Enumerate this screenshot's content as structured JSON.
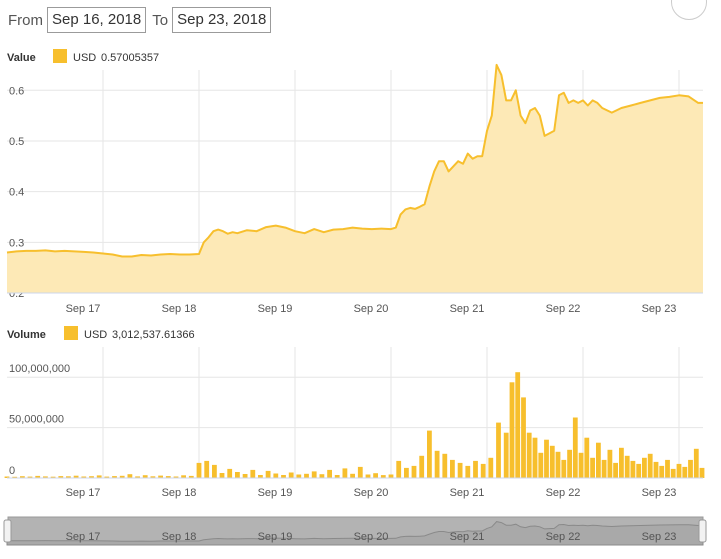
{
  "range": {
    "from_label": "From",
    "from_value": "Sep 16, 2018",
    "to_label": "To",
    "to_value": "Sep 23, 2018"
  },
  "colors": {
    "accent": "#f7bf2d",
    "area": "#fde9b6",
    "grid": "#e6e6e6",
    "navigator": "#b3b3b3"
  },
  "chart_data": [
    {
      "type": "area",
      "panel": "value",
      "legend": {
        "name": "Value",
        "series_label": "USD",
        "current": "0.57005357"
      },
      "x_ticks": [
        "Sep 17",
        "Sep 18",
        "Sep 19",
        "Sep 20",
        "Sep 21",
        "Sep 22",
        "Sep 23"
      ],
      "y_ticks": [
        "0.2",
        "0.3",
        "0.4",
        "0.5",
        "0.6"
      ],
      "ylim": [
        0.2,
        0.64
      ],
      "x": [
        16.0,
        16.1,
        16.2,
        16.3,
        16.4,
        16.5,
        16.6,
        16.7,
        16.8,
        16.9,
        17.0,
        17.1,
        17.2,
        17.3,
        17.4,
        17.5,
        17.6,
        17.7,
        17.8,
        17.9,
        18.0,
        18.05,
        18.1,
        18.15,
        18.2,
        18.25,
        18.3,
        18.35,
        18.4,
        18.5,
        18.6,
        18.7,
        18.8,
        18.9,
        19.0,
        19.1,
        19.2,
        19.3,
        19.4,
        19.5,
        19.6,
        19.7,
        19.8,
        19.9,
        20.0,
        20.05,
        20.1,
        20.15,
        20.2,
        20.25,
        20.3,
        20.35,
        20.4,
        20.45,
        20.5,
        20.55,
        20.6,
        20.65,
        20.7,
        20.75,
        20.8,
        20.85,
        20.9,
        20.95,
        21.0,
        21.05,
        21.1,
        21.15,
        21.2,
        21.25,
        21.3,
        21.35,
        21.4,
        21.45,
        21.5,
        21.55,
        21.6,
        21.65,
        21.7,
        21.75,
        21.8,
        21.85,
        21.9,
        21.95,
        22.0,
        22.05,
        22.1,
        22.15,
        22.2,
        22.3,
        22.4,
        22.5,
        22.6,
        22.7,
        22.8,
        22.9,
        23.0,
        23.1,
        23.2,
        23.25
      ],
      "values": [
        0.28,
        0.282,
        0.283,
        0.283,
        0.284,
        0.282,
        0.283,
        0.282,
        0.281,
        0.28,
        0.278,
        0.276,
        0.272,
        0.272,
        0.275,
        0.274,
        0.276,
        0.277,
        0.276,
        0.276,
        0.277,
        0.3,
        0.31,
        0.322,
        0.325,
        0.322,
        0.317,
        0.32,
        0.318,
        0.324,
        0.322,
        0.33,
        0.333,
        0.329,
        0.322,
        0.318,
        0.326,
        0.32,
        0.325,
        0.326,
        0.329,
        0.327,
        0.326,
        0.327,
        0.326,
        0.329,
        0.355,
        0.365,
        0.368,
        0.366,
        0.37,
        0.375,
        0.41,
        0.44,
        0.46,
        0.46,
        0.44,
        0.45,
        0.46,
        0.455,
        0.475,
        0.465,
        0.47,
        0.47,
        0.52,
        0.55,
        0.65,
        0.63,
        0.58,
        0.58,
        0.6,
        0.55,
        0.535,
        0.56,
        0.565,
        0.55,
        0.51,
        0.515,
        0.52,
        0.59,
        0.595,
        0.575,
        0.58,
        0.575,
        0.58,
        0.57,
        0.58,
        0.575,
        0.565,
        0.556,
        0.565,
        0.57,
        0.575,
        0.58,
        0.585,
        0.587,
        0.59,
        0.588,
        0.575,
        0.575
      ]
    },
    {
      "type": "bar",
      "panel": "volume",
      "legend": {
        "name": "Volume",
        "series_label": "USD",
        "current": "3,012,537.61366"
      },
      "x_ticks": [
        "Sep 17",
        "Sep 18",
        "Sep 19",
        "Sep 20",
        "Sep 21",
        "Sep 22",
        "Sep 23"
      ],
      "y_ticks": [
        "0",
        "50,000,000",
        "100,000,000"
      ],
      "ylim": [
        0,
        130000000
      ],
      "x": [
        16.0,
        16.08,
        16.16,
        16.24,
        16.32,
        16.4,
        16.48,
        16.56,
        16.64,
        16.72,
        16.8,
        16.88,
        16.96,
        17.04,
        17.12,
        17.2,
        17.28,
        17.36,
        17.44,
        17.52,
        17.6,
        17.68,
        17.76,
        17.84,
        17.92,
        18.0,
        18.08,
        18.16,
        18.24,
        18.32,
        18.4,
        18.48,
        18.56,
        18.64,
        18.72,
        18.8,
        18.88,
        18.96,
        19.04,
        19.12,
        19.2,
        19.28,
        19.36,
        19.44,
        19.52,
        19.6,
        19.68,
        19.76,
        19.84,
        19.92,
        20.0,
        20.08,
        20.16,
        20.24,
        20.32,
        20.4,
        20.48,
        20.56,
        20.64,
        20.72,
        20.8,
        20.88,
        20.96,
        21.04,
        21.12,
        21.2,
        21.26,
        21.32,
        21.38,
        21.44,
        21.5,
        21.56,
        21.62,
        21.68,
        21.74,
        21.8,
        21.86,
        21.92,
        21.98,
        22.04,
        22.1,
        22.16,
        22.22,
        22.28,
        22.34,
        22.4,
        22.46,
        22.52,
        22.58,
        22.64,
        22.7,
        22.76,
        22.82,
        22.88,
        22.94,
        23.0,
        23.06,
        23.12,
        23.18,
        23.24
      ],
      "values": [
        1500000,
        1200000,
        1800000,
        1400000,
        2100000,
        1600000,
        1300000,
        1900000,
        1700000,
        2300000,
        1500000,
        1800000,
        2600000,
        1400000,
        1900000,
        2200000,
        3800000,
        1600000,
        2800000,
        1700000,
        2400000,
        1900000,
        1500000,
        2700000,
        2100000,
        15000000,
        17000000,
        13000000,
        5000000,
        9000000,
        6000000,
        4000000,
        8000000,
        3000000,
        7000000,
        4500000,
        3000000,
        5500000,
        3500000,
        4200000,
        6500000,
        3800000,
        8000000,
        3000000,
        9500000,
        4200000,
        11000000,
        3500000,
        4800000,
        2900000,
        3500000,
        17000000,
        10000000,
        12000000,
        22000000,
        47000000,
        27000000,
        24000000,
        18000000,
        15000000,
        12000000,
        17000000,
        14000000,
        20000000,
        55000000,
        45000000,
        95000000,
        105000000,
        80000000,
        45000000,
        40000000,
        25000000,
        38000000,
        32000000,
        26000000,
        18000000,
        28000000,
        60000000,
        25000000,
        40000000,
        20000000,
        35000000,
        18000000,
        28000000,
        15000000,
        30000000,
        22000000,
        17000000,
        14000000,
        20000000,
        24000000,
        16000000,
        12000000,
        18000000,
        9000000,
        14000000,
        11000000,
        18000000,
        29000000,
        10000000
      ]
    }
  ],
  "navigator": {
    "x_ticks": [
      "Sep 17",
      "Sep 18",
      "Sep 19",
      "Sep 20",
      "Sep 21",
      "Sep 22",
      "Sep 23"
    ]
  }
}
